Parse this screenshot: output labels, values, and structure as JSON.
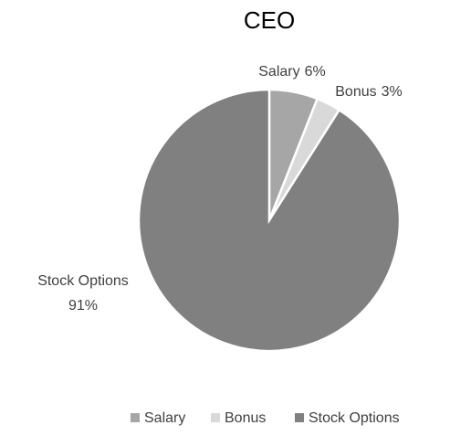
{
  "chart_data": {
    "type": "pie",
    "title": "CEO",
    "categories": [
      "Salary",
      "Bonus",
      "Stock Options"
    ],
    "values": [
      6,
      3,
      91
    ],
    "value_labels": [
      "6%",
      "3%",
      "91%"
    ],
    "colors": [
      "#a6a6a6",
      "#d9d9d9",
      "#808080"
    ],
    "legend": "bottom"
  }
}
